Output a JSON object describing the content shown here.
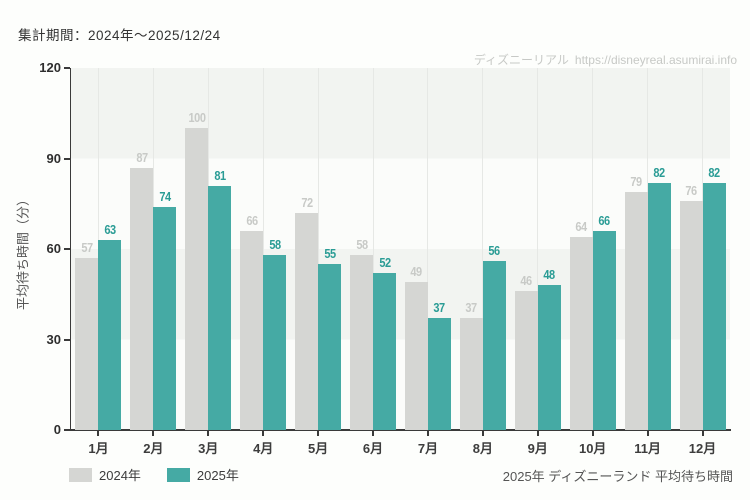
{
  "header": {
    "period_label": "集計期間：2024年～2025/12/24"
  },
  "watermark": {
    "site_name": "ディズニーリアル",
    "url": "https://disneyreal.asumirai.info"
  },
  "caption": "2025年 ディズニーランド 平均待ち時間",
  "colors": {
    "bar_2024": "#d5d6d3",
    "bar_2025": "#45aaa4",
    "value_label_2024": "#c8cac7",
    "value_label_2025": "#2a9c95",
    "axis": "#3a3a3a",
    "band_gray": "#f2f4f1",
    "band_white": "#fbfcfa",
    "gridline": "#e6e8e5"
  },
  "chart_data": {
    "type": "bar",
    "title": "",
    "xlabel": "",
    "ylabel": "平均待ち時間（分）",
    "ylim": [
      0,
      120
    ],
    "yticks": [
      0,
      30,
      60,
      90,
      120
    ],
    "grid": "alternating horizontal bands every 30 units; vertical gridline at each month center",
    "legend_position": "bottom-left",
    "categories": [
      "1月",
      "2月",
      "3月",
      "4月",
      "5月",
      "6月",
      "7月",
      "8月",
      "9月",
      "10月",
      "11月",
      "12月"
    ],
    "series": [
      {
        "name": "2024年",
        "color": "#d5d6d3",
        "label_color": "#c8cac7",
        "values": [
          57,
          87,
          100,
          66,
          72,
          58,
          49,
          37,
          46,
          64,
          79,
          76
        ]
      },
      {
        "name": "2025年",
        "color": "#45aaa4",
        "label_color": "#2a9c95",
        "values": [
          63,
          74,
          81,
          58,
          55,
          52,
          37,
          56,
          48,
          66,
          82,
          82
        ]
      }
    ]
  }
}
